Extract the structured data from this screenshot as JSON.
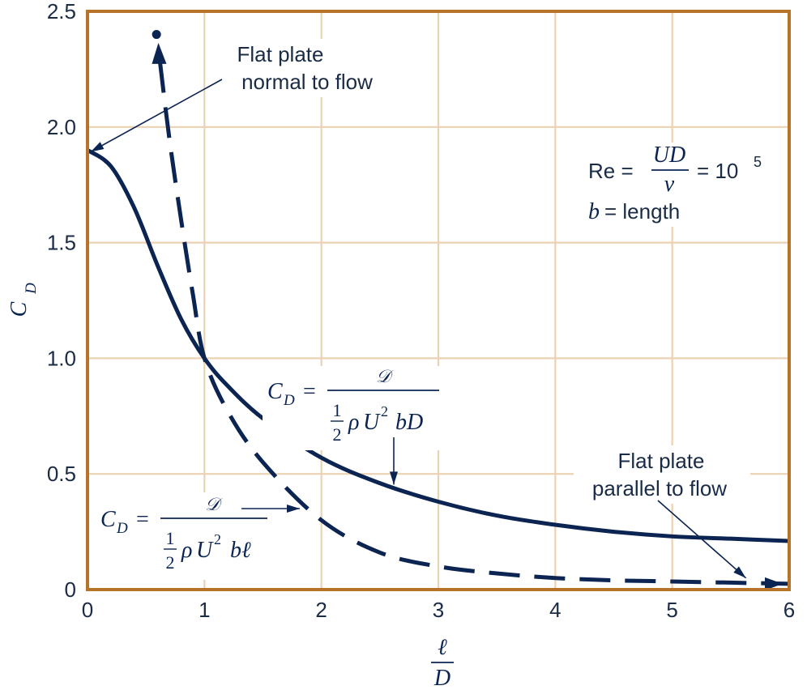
{
  "chart_data": {
    "type": "line",
    "xlabel_top": "ℓ",
    "xlabel_bottom": "D",
    "ylabel_main": "C",
    "ylabel_sub": "D",
    "xlim": [
      0,
      6
    ],
    "ylim": [
      0,
      2.5
    ],
    "grid": true,
    "x_ticks": [
      "0",
      "1",
      "2",
      "3",
      "4",
      "5",
      "6"
    ],
    "y_ticks": [
      "0",
      "0.5",
      "1.0",
      "1.5",
      "2.0",
      "2.5"
    ],
    "series": [
      {
        "style": "solid",
        "x": [
          0,
          0.2,
          0.4,
          0.6,
          0.8,
          1.0,
          1.2,
          1.5,
          2.0,
          2.5,
          3.0,
          3.5,
          4.0,
          4.5,
          5.0,
          5.5,
          6.0
        ],
        "y": [
          1.9,
          1.83,
          1.65,
          1.4,
          1.17,
          1.0,
          0.88,
          0.74,
          0.57,
          0.46,
          0.38,
          0.32,
          0.28,
          0.25,
          0.23,
          0.22,
          0.21
        ]
      },
      {
        "style": "dashed",
        "x": [
          0.62,
          0.7,
          0.8,
          0.9,
          1.0,
          1.2,
          1.5,
          2.0,
          2.5,
          3.0,
          3.5,
          4.0,
          4.5,
          5.0,
          5.5,
          6.0
        ],
        "y": [
          2.28,
          1.95,
          1.6,
          1.28,
          1.0,
          0.77,
          0.55,
          0.3,
          0.16,
          0.1,
          0.07,
          0.05,
          0.04,
          0.035,
          0.03,
          0.025
        ]
      }
    ],
    "point": {
      "x": 0.59,
      "y": 2.4
    },
    "annotations": {
      "normal_line1": "Flat plate",
      "normal_line2": "normal to flow",
      "parallel_line1": "Flat plate",
      "parallel_line2": "parallel to flow",
      "re_prefix": "Re =",
      "re_num": "UD",
      "re_den": "ν",
      "re_suffix": "= 10",
      "re_exp": "5",
      "b_var": "b",
      "b_text": "= length",
      "cd_var": "C",
      "cd_sub": "D",
      "eq": "=",
      "drag_symbol": "𝒟",
      "half_num": "1",
      "half_den": "2",
      "rho": "ρ",
      "u": "U",
      "u_exp": "2",
      "formula1_tail": "bD",
      "formula2_tail": "bℓ"
    }
  },
  "colors": {
    "frame": "#b8732a",
    "grid": "#ecd2b2",
    "curve": "#0b2452",
    "text": "#1a2b45"
  }
}
